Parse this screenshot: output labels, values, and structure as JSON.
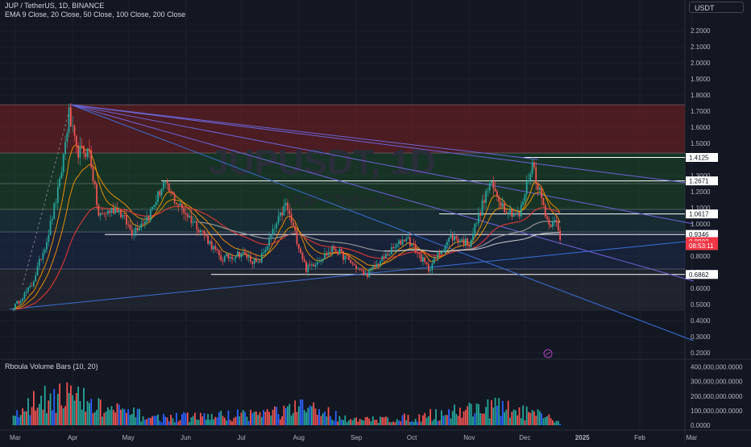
{
  "header": {
    "symbol_line": "JUP / TetherUS, 1D, BINANCE",
    "indicator_line": "EMA 9 Close, 20 Close, 50 Close, 100 Close, 200 Close",
    "volume_indicator": "Rboula Volume Bars (10, 20)",
    "currency_button": "USDT"
  },
  "watermark": {
    "symbol": "JUPUSDT, 1D",
    "name": "JUP / TetherUS"
  },
  "colors": {
    "background": "#131722",
    "grid": "#1e222d",
    "up": "#26a69a",
    "down": "#ef5350",
    "trendline": "#3b6fd6",
    "fan_line": "#6c63d8",
    "ema_orange": "#ff9800",
    "ema_red": "#e53935",
    "ema_gray": "#9e9e9e",
    "zone_red": "#7a2121",
    "zone_green": "#1c4a2a",
    "zone_teal": "#1a3d40",
    "zone_blue": "#1c2c4a",
    "zone_gray": "#2a2e39",
    "volume_up": "#26a69a",
    "volume_down": "#ef5350",
    "volume_mid": "#2962ff"
  },
  "chart_data": [
    {
      "type": "candlestick",
      "title": "JUP / TetherUS, 1D, BINANCE",
      "x_axis_labels": [
        "Mar",
        "Apr",
        "May",
        "Jun",
        "Jul",
        "Aug",
        "Sep",
        "Oct",
        "Nov",
        "Dec",
        "2025",
        "Feb",
        "Mar"
      ],
      "y_axis_ticks": [
        "2.2000",
        "2.1000",
        "2.0000",
        "1.9000",
        "1.8000",
        "1.7000",
        "1.6000",
        "1.5000",
        "1.4000",
        "1.3000",
        "1.2000",
        "1.1000",
        "1.0000",
        "0.9000",
        "0.8000",
        "0.7000",
        "0.6000",
        "0.5000",
        "0.4000",
        "0.3000",
        "0.2000"
      ],
      "ylim": [
        0.19,
        2.25
      ],
      "scale": "linear",
      "price_path": [
        {
          "date": "2024-02-29",
          "price": 0.48
        },
        {
          "date": "2024-03-10",
          "price": 0.62
        },
        {
          "date": "2024-03-18",
          "price": 0.9
        },
        {
          "date": "2024-03-25",
          "price": 1.25
        },
        {
          "date": "2024-03-30",
          "price": 1.68
        },
        {
          "date": "2024-04-03",
          "price": 1.45
        },
        {
          "date": "2024-04-10",
          "price": 1.45
        },
        {
          "date": "2024-04-15",
          "price": 1.05
        },
        {
          "date": "2024-04-25",
          "price": 1.1
        },
        {
          "date": "2024-05-03",
          "price": 0.95
        },
        {
          "date": "2024-05-12",
          "price": 1.05
        },
        {
          "date": "2024-05-20",
          "price": 1.25
        },
        {
          "date": "2024-05-28",
          "price": 1.12
        },
        {
          "date": "2024-06-10",
          "price": 0.95
        },
        {
          "date": "2024-06-20",
          "price": 0.78
        },
        {
          "date": "2024-07-01",
          "price": 0.82
        },
        {
          "date": "2024-07-10",
          "price": 0.75
        },
        {
          "date": "2024-07-25",
          "price": 1.12
        },
        {
          "date": "2024-08-05",
          "price": 0.72
        },
        {
          "date": "2024-08-20",
          "price": 0.85
        },
        {
          "date": "2024-09-06",
          "price": 0.68
        },
        {
          "date": "2024-09-15",
          "price": 0.78
        },
        {
          "date": "2024-09-28",
          "price": 0.92
        },
        {
          "date": "2024-10-10",
          "price": 0.72
        },
        {
          "date": "2024-10-22",
          "price": 0.92
        },
        {
          "date": "2024-11-01",
          "price": 0.88
        },
        {
          "date": "2024-11-12",
          "price": 1.25
        },
        {
          "date": "2024-11-20",
          "price": 1.1
        },
        {
          "date": "2024-11-28",
          "price": 1.05
        },
        {
          "date": "2024-12-05",
          "price": 1.38
        },
        {
          "date": "2024-12-09",
          "price": 1.2
        },
        {
          "date": "2024-12-14",
          "price": 0.99
        },
        {
          "date": "2024-12-17",
          "price": 1.05
        },
        {
          "date": "2024-12-20",
          "price": 0.8902
        }
      ],
      "horizontal_levels": [
        1.4125,
        1.2671,
        1.0617,
        0.9346,
        0.6862
      ],
      "price_labels": [
        {
          "text": "1.4125",
          "value": 1.4125,
          "style": "white"
        },
        {
          "text": "1.2671",
          "value": 1.2671,
          "style": "white"
        },
        {
          "text": "1.0617",
          "value": 1.0617,
          "style": "white"
        },
        {
          "text": "0.9346",
          "value": 0.9346,
          "style": "white"
        },
        {
          "text": "0.8902",
          "value": 0.8902,
          "style": "red"
        },
        {
          "text": "08:53:11",
          "value": 0.865,
          "style": "red"
        },
        {
          "text": "0.6862",
          "value": 0.6862,
          "style": "white"
        }
      ],
      "zones": [
        {
          "from": 1.44,
          "to": 1.74,
          "color": "zone_red"
        },
        {
          "from": 1.25,
          "to": 1.44,
          "color": "zone_green"
        },
        {
          "from": 1.09,
          "to": 1.25,
          "color": "zone_green"
        },
        {
          "from": 0.95,
          "to": 1.09,
          "color": "zone_teal"
        },
        {
          "from": 0.72,
          "to": 0.95,
          "color": "zone_blue"
        },
        {
          "from": 0.46,
          "to": 0.72,
          "color": "zone_gray"
        }
      ],
      "trendlines": [
        {
          "from": {
            "date": "2024-02-27",
            "price": 0.47
          },
          "to": {
            "date": "2025-03-02",
            "price": 0.895
          }
        },
        {
          "from": {
            "date": "2024-03-31",
            "price": 1.74
          },
          "to": {
            "date": "2025-03-02",
            "price": 0.275
          }
        },
        {
          "from": {
            "date": "2024-03-31",
            "price": 1.74
          },
          "to": {
            "date": "2025-03-02",
            "price": 0.645
          }
        },
        {
          "from": {
            "date": "2024-03-31",
            "price": 1.74
          },
          "to": {
            "date": "2025-03-02",
            "price": 1.0
          }
        },
        {
          "from": {
            "date": "2024-03-31",
            "price": 1.74
          },
          "to": {
            "date": "2025-03-02",
            "price": 1.25
          }
        },
        {
          "from": {
            "date": "2024-03-31",
            "price": 1.74
          },
          "to": {
            "date": "2024-12-08",
            "price": 1.4
          }
        }
      ]
    },
    {
      "type": "bar",
      "title": "Rboula Volume Bars (10, 20)",
      "y_axis_ticks": [
        "400,000,000.0000",
        "300,000,000.0000",
        "200,000,000.0000",
        "100,000,000.0000",
        "0.0000"
      ],
      "ylim": [
        0,
        420000000
      ],
      "volume_profile": [
        {
          "date": "2024-03-01",
          "value": 100000000
        },
        {
          "date": "2024-03-10",
          "value": 160000000
        },
        {
          "date": "2024-03-20",
          "value": 260000000
        },
        {
          "date": "2024-03-31",
          "value": 230000000
        },
        {
          "date": "2024-04-15",
          "value": 140000000
        },
        {
          "date": "2024-05-15",
          "value": 60000000
        },
        {
          "date": "2024-06-15",
          "value": 70000000
        },
        {
          "date": "2024-07-25",
          "value": 110000000
        },
        {
          "date": "2024-08-05",
          "value": 140000000
        },
        {
          "date": "2024-09-01",
          "value": 40000000
        },
        {
          "date": "2024-10-01",
          "value": 60000000
        },
        {
          "date": "2024-11-12",
          "value": 150000000
        },
        {
          "date": "2024-12-05",
          "value": 90000000
        },
        {
          "date": "2024-12-20",
          "value": 30000000
        }
      ]
    }
  ]
}
